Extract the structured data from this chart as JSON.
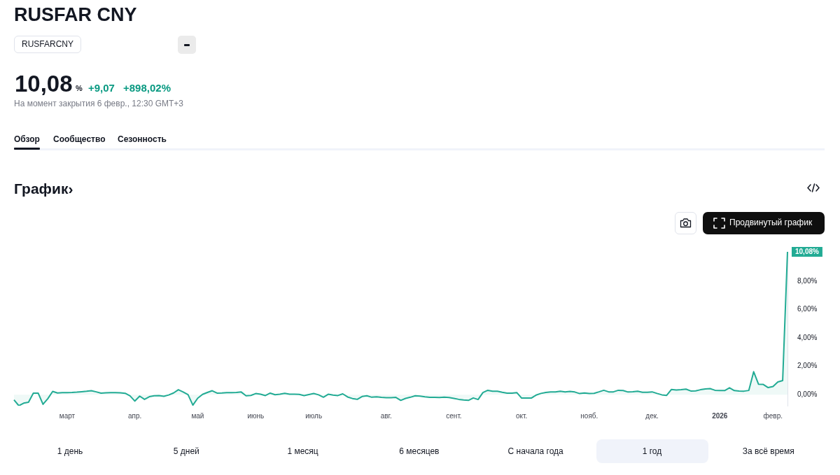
{
  "chart_data": {
    "type": "area",
    "title": "RUSFAR CNY",
    "annotations": [
      "RUSFARCNY",
      "10,08",
      "%",
      "+9,07",
      "+898,02%",
      "На момент закрытия 6 февр., 12:30 GMT+3",
      "Обзор",
      "Сообщество",
      "Сезонность",
      "График›",
      "Продвинутый график",
      "1 день",
      "5 дней",
      "1 месяц",
      "6 месяцев",
      "С начала года",
      "1 год",
      "За всё время",
      "10,08%"
    ],
    "categories": [
      null,
      null,
      null,
      null,
      null,
      null,
      null,
      null,
      null,
      null,
      null,
      "март",
      null,
      null,
      null,
      null,
      null,
      null,
      null,
      null,
      null,
      null,
      null,
      null,
      null,
      "апр.",
      null,
      null,
      null,
      null,
      null,
      null,
      null,
      null,
      null,
      null,
      null,
      null,
      "май",
      null,
      null,
      null,
      null,
      null,
      null,
      null,
      null,
      null,
      null,
      null,
      "июнь",
      null,
      null,
      null,
      null,
      null,
      null,
      null,
      null,
      null,
      null,
      null,
      "июль",
      null,
      null,
      null,
      null,
      null,
      null,
      null,
      null,
      null,
      null,
      null,
      null,
      null,
      null,
      "авг.",
      null,
      null,
      null,
      null,
      null,
      null,
      null,
      null,
      null,
      null,
      null,
      null,
      null,
      "сент.",
      null,
      null,
      null,
      null,
      null,
      null,
      null,
      null,
      null,
      null,
      null,
      null,
      null,
      "окт.",
      null,
      null,
      null,
      null,
      null,
      null,
      null,
      null,
      null,
      null,
      null,
      null,
      null,
      "нояб.",
      null,
      null,
      null,
      null,
      null,
      null,
      null,
      null,
      null,
      null,
      null,
      null,
      "дек.",
      null,
      null,
      null,
      null,
      null,
      null,
      null,
      null,
      null,
      null,
      null,
      null,
      null,
      "2026",
      null,
      null,
      null,
      null,
      null,
      null,
      null,
      null,
      null,
      null,
      "февр.",
      null,
      null,
      null
    ],
    "series": [
      {
        "color": "#22ab94",
        "values": [
          -0.37,
          -0.78,
          -0.6,
          -0.53,
          0.11,
          0.11,
          -0.68,
          -0.28,
          0.23,
          0.12,
          0.15,
          0.15,
          0.16,
          0.18,
          0.21,
          0.24,
          0.28,
          0.2,
          0.11,
          0.13,
          0.15,
          0.15,
          0.13,
          0.1,
          -0.08,
          -0.45,
          -0.1,
          -0.33,
          -0.14,
          -0.08,
          -0.06,
          -0.11,
          -0.02,
          0.12,
          0.35,
          0.19,
          0,
          -0.74,
          -0.25,
          0.02,
          0.16,
          0.28,
          0.11,
          0.12,
          0.15,
          0.15,
          0.16,
          0.19,
          -0.08,
          -0.05,
          0.08,
          0.03,
          -0.06,
          0.11,
          0,
          0.03,
          0.1,
          0.03,
          0.03,
          0.02,
          -0.06,
          0.01,
          0.08,
          -0.01,
          -0.18,
          0.03,
          -0.03,
          -0.06,
          0.06,
          -0.16,
          -0.27,
          -0.33,
          -0.13,
          -0.08,
          -0.18,
          -0.15,
          -0.19,
          -0.21,
          -0.21,
          -0.19,
          -0.4,
          -0.26,
          -0.18,
          -0.08,
          -0.1,
          -0.15,
          -0.19,
          -0.19,
          -0.2,
          -0.18,
          -0.2,
          -0.26,
          -0.33,
          -0.37,
          -0.4,
          -0.23,
          -0.34,
          0.15,
          0.31,
          0.24,
          0.24,
          0.17,
          0.11,
          0.11,
          0.15,
          -0.24,
          -0.24,
          -0.24,
          -0.03,
          0.09,
          0.16,
          0.19,
          0.19,
          0.24,
          0.19,
          0.23,
          0.19,
          0.08,
          0.12,
          0.08,
          0.1,
          0.2,
          0.31,
          0.2,
          0.2,
          0.31,
          0.29,
          0.19,
          0.21,
          0.24,
          0.17,
          0.17,
          0.2,
          0.09,
          -0.01,
          -0.05,
          0.37,
          0.33,
          0.35,
          0.39,
          0.26,
          0.27,
          0.35,
          0.4,
          0.43,
          0.31,
          0.29,
          0.29,
          0.49,
          0.29,
          0.26,
          0.25,
          0.3,
          1.62,
          0.74,
          0.72,
          0.5,
          0.58,
          0.9,
          1.0,
          10.08
        ]
      }
    ],
    "ylim": [
      -0.78,
      10.08
    ],
    "yticks": [
      {
        "value": 0,
        "label": "0,00%"
      },
      {
        "value": 2,
        "label": "2,00%"
      },
      {
        "value": 4,
        "label": "4,00%"
      },
      {
        "value": 6,
        "label": "6,00%"
      },
      {
        "value": 8,
        "label": "8,00%"
      }
    ],
    "grid": false,
    "legend": false,
    "marker": "none",
    "line_style": "solid"
  }
}
